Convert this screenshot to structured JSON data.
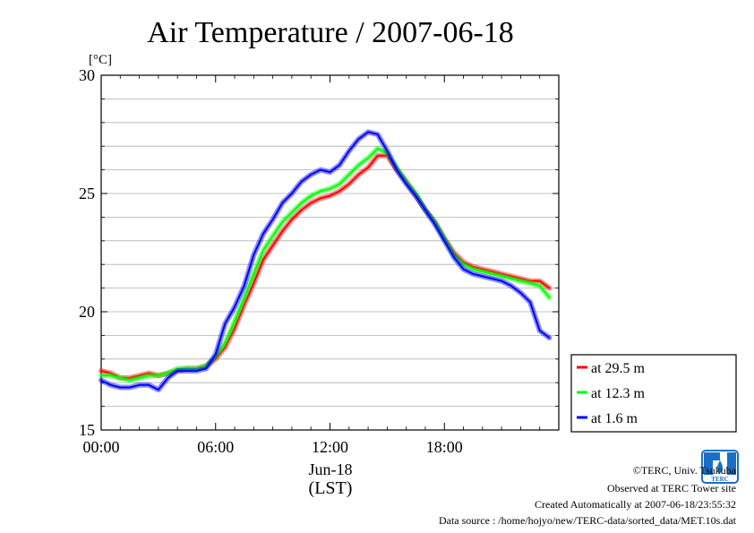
{
  "chart_data": {
    "type": "line",
    "title": "Air Temperature / 2007-06-18",
    "ylabel_unit": "[°C]",
    "xlabel_date": "Jun-18",
    "xlabel_tz": "(LST)",
    "ylim": [
      15,
      30
    ],
    "xlim_hours": [
      0,
      24
    ],
    "yticks": [
      "15",
      "20",
      "25",
      "30"
    ],
    "ygrid_values": [
      16,
      17,
      18,
      19,
      20,
      21,
      22,
      23,
      24,
      25,
      26,
      27,
      28,
      29
    ],
    "xticks": [
      {
        "hour": 0,
        "label": "00:00"
      },
      {
        "hour": 6,
        "label": "06:00"
      },
      {
        "hour": 12,
        "label": "12:00"
      },
      {
        "hour": 18,
        "label": "18:00"
      }
    ],
    "legend_position": "bottom-right outside",
    "series": [
      {
        "name": "at 29.5 m",
        "color": "#ff0000",
        "x": [
          0,
          0.5,
          1,
          1.5,
          2,
          2.5,
          3,
          3.5,
          4,
          4.5,
          5,
          5.5,
          6,
          6.5,
          7,
          7.5,
          8,
          8.5,
          9,
          9.5,
          10,
          10.5,
          11,
          11.5,
          12,
          12.5,
          13,
          13.5,
          14,
          14.5,
          15,
          15.5,
          16,
          16.5,
          17,
          17.5,
          18,
          18.5,
          19,
          19.5,
          20,
          20.5,
          21,
          21.5,
          22,
          22.5,
          23,
          23.5
        ],
        "values": [
          17.5,
          17.4,
          17.2,
          17.2,
          17.3,
          17.4,
          17.3,
          17.4,
          17.5,
          17.6,
          17.6,
          17.7,
          18.0,
          18.5,
          19.3,
          20.3,
          21.2,
          22.2,
          22.8,
          23.4,
          23.9,
          24.3,
          24.6,
          24.8,
          24.9,
          25.1,
          25.4,
          25.8,
          26.1,
          26.6,
          26.6,
          26.0,
          25.5,
          24.9,
          24.3,
          23.8,
          23.1,
          22.5,
          22.1,
          21.9,
          21.8,
          21.7,
          21.6,
          21.5,
          21.4,
          21.3,
          21.3,
          21.0
        ]
      },
      {
        "name": "at 12.3 m",
        "color": "#00ff00",
        "x": [
          0,
          0.5,
          1,
          1.5,
          2,
          2.5,
          3,
          3.5,
          4,
          4.5,
          5,
          5.5,
          6,
          6.5,
          7,
          7.5,
          8,
          8.5,
          9,
          9.5,
          10,
          10.5,
          11,
          11.5,
          12,
          12.5,
          13,
          13.5,
          14,
          14.5,
          15,
          15.5,
          16,
          16.5,
          17,
          17.5,
          18,
          18.5,
          19,
          19.5,
          20,
          20.5,
          21,
          21.5,
          22,
          22.5,
          23,
          23.5
        ],
        "values": [
          17.3,
          17.3,
          17.2,
          17.1,
          17.2,
          17.3,
          17.3,
          17.4,
          17.6,
          17.6,
          17.6,
          17.7,
          18.1,
          18.7,
          19.6,
          20.6,
          21.6,
          22.6,
          23.2,
          23.8,
          24.2,
          24.6,
          24.9,
          25.1,
          25.2,
          25.4,
          25.8,
          26.2,
          26.5,
          26.9,
          26.7,
          26.1,
          25.5,
          25.0,
          24.3,
          23.8,
          23.1,
          22.4,
          22.0,
          21.8,
          21.7,
          21.6,
          21.5,
          21.4,
          21.3,
          21.2,
          21.1,
          20.6
        ]
      },
      {
        "name": "at 1.6 m",
        "color": "#0000ff",
        "x": [
          0,
          0.5,
          1,
          1.5,
          2,
          2.5,
          3,
          3.5,
          4,
          4.5,
          5,
          5.5,
          6,
          6.5,
          7,
          7.5,
          8,
          8.5,
          9,
          9.5,
          10,
          10.5,
          11,
          11.5,
          12,
          12.5,
          13,
          13.5,
          14,
          14.5,
          15,
          15.5,
          16,
          16.5,
          17,
          17.5,
          18,
          18.5,
          19,
          19.5,
          20,
          20.5,
          21,
          21.5,
          22,
          22.5,
          23,
          23.5
        ],
        "values": [
          17.1,
          16.9,
          16.8,
          16.8,
          16.9,
          16.9,
          16.7,
          17.2,
          17.5,
          17.5,
          17.5,
          17.6,
          18.2,
          19.5,
          20.2,
          21.1,
          22.4,
          23.3,
          23.9,
          24.6,
          25.0,
          25.5,
          25.8,
          26.0,
          25.9,
          26.2,
          26.8,
          27.3,
          27.6,
          27.5,
          26.8,
          26.0,
          25.4,
          24.9,
          24.3,
          23.7,
          23.0,
          22.3,
          21.8,
          21.6,
          21.5,
          21.4,
          21.3,
          21.1,
          20.8,
          20.4,
          19.2,
          18.9
        ]
      }
    ]
  },
  "footer": {
    "copyright": "©TERC, Univ. Tsukuba",
    "observed": "Observed at TERC Tower site",
    "created": "Created Automatically at 2007-06-18/23:55:32",
    "source": "Data source : /home/hojyo/new/TERC-data/sorted_data/MET.10s.dat"
  },
  "logo": {
    "text": "TERC",
    "color": "#1a6fc4"
  }
}
